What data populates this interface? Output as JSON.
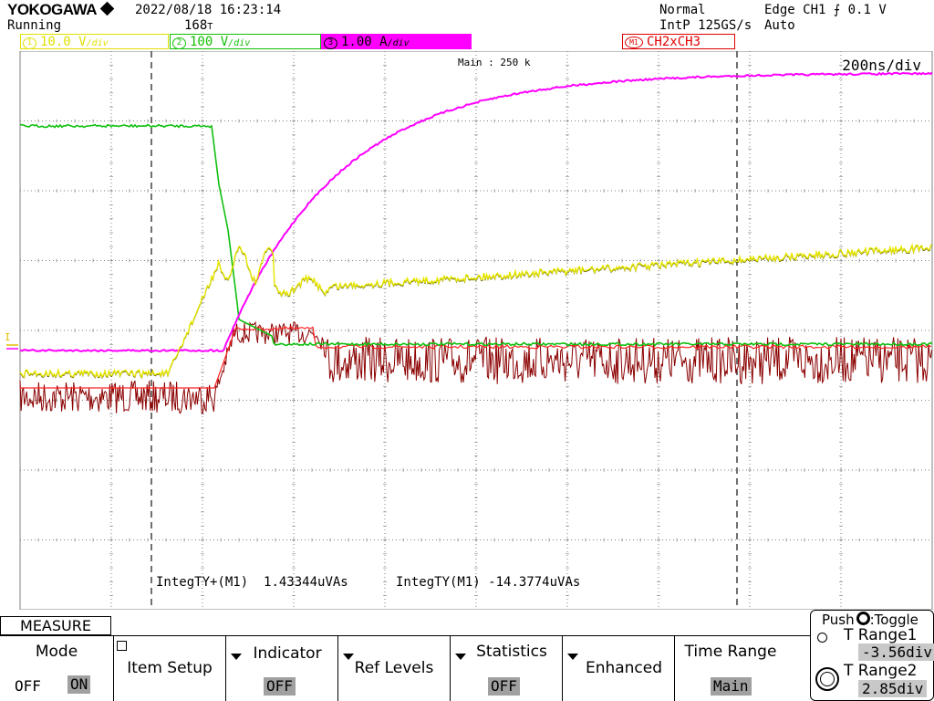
{
  "header": {
    "brand": "YOKOGAWA",
    "status": "Running",
    "datetime": "2022/08/18  16:23:14",
    "acq_count": "168",
    "acq_mode": "Normal",
    "sample_rate": "IntP 125GS/s",
    "trigger": "Edge CH1",
    "trigger_level": "0.1 V",
    "trigger_mode": "Auto"
  },
  "channels": [
    {
      "num": "1",
      "scale": "10.0 V",
      "unit": "/div",
      "suffix": " ",
      "color": "#e0e000",
      "bg": "#ffffff"
    },
    {
      "num": "2",
      "scale": "100 V",
      "unit": "/div",
      "suffix": " ",
      "color": "#10c000",
      "bg": "#ffffff"
    },
    {
      "num": "3",
      "scale": "1.00 A",
      "unit": "/div",
      "suffix": " ",
      "color": "#000000",
      "bg": "#ff00ff"
    }
  ],
  "math": {
    "label": "M1",
    "expr": "CH2xCH3",
    "color": "#e00000"
  },
  "display": {
    "main_label": "Main : 250 k",
    "timebase": "200ns/div"
  },
  "measurements": [
    {
      "label": "IntegTY+(M1)",
      "value": "1.43344uVAs"
    },
    {
      "label": "IntegTY(M1)",
      "value": "-14.3774uVAs"
    }
  ],
  "menu": {
    "title": "MEASURE",
    "mode": {
      "title": "Mode",
      "off": "OFF",
      "on": "ON"
    },
    "item_setup": "Item Setup",
    "indicator": {
      "title": "Indicator",
      "value": "OFF"
    },
    "ref_levels": "Ref Levels",
    "statistics": {
      "title": "Statistics",
      "value": "OFF"
    },
    "enhanced": "Enhanced",
    "time_range": {
      "title": "Time Range",
      "value": "Main"
    },
    "push_toggle": "Push",
    "toggle_label": ":Toggle",
    "t_range1": {
      "label": "T Range1",
      "value": "-3.56div"
    },
    "t_range2": {
      "label": "T Range2",
      "value": "2.85div"
    }
  },
  "colors": {
    "ch1": "#e8e800",
    "ch2": "#10c010",
    "ch3": "#ff00ff",
    "math": "#8b0000",
    "math_avg": "#ff2020",
    "grid": "#808080"
  }
}
